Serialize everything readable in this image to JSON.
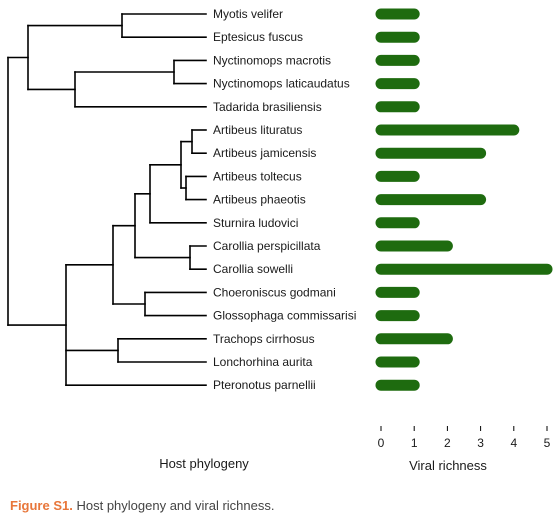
{
  "chart_data": {
    "type": "bar",
    "orientation": "horizontal",
    "categories": [
      "Myotis velifer",
      "Eptesicus fuscus",
      "Nyctinomops macrotis",
      "Nyctinomops laticaudatus",
      "Tadarida brasiliensis",
      "Artibeus lituratus",
      "Artibeus jamicensis",
      "Artibeus toltecus",
      "Artibeus phaeotis",
      "Sturnira ludovici",
      "Carollia perspicillata",
      "Carollia sowelli",
      "Choeroniscus godmani",
      "Glossophaga commissarisi",
      "Trachops cirrhosus",
      "Lonchorhina aurita",
      "Pteronotus parnellii"
    ],
    "values": [
      1,
      1,
      1,
      1,
      1,
      4,
      3,
      1,
      3,
      1,
      2,
      5,
      1,
      1,
      2,
      1,
      1
    ],
    "xlabel": "Viral richness",
    "tree_label": "Host phylogeny",
    "xlim": [
      0,
      5
    ],
    "xticks": [
      0,
      1,
      2,
      3,
      4,
      5
    ],
    "grid": false,
    "bar_color": "#1e6b0f"
  },
  "caption": {
    "label": "Figure S1.",
    "text": " Host phylogeny and viral richness.",
    "label_color": "#e8763a"
  }
}
